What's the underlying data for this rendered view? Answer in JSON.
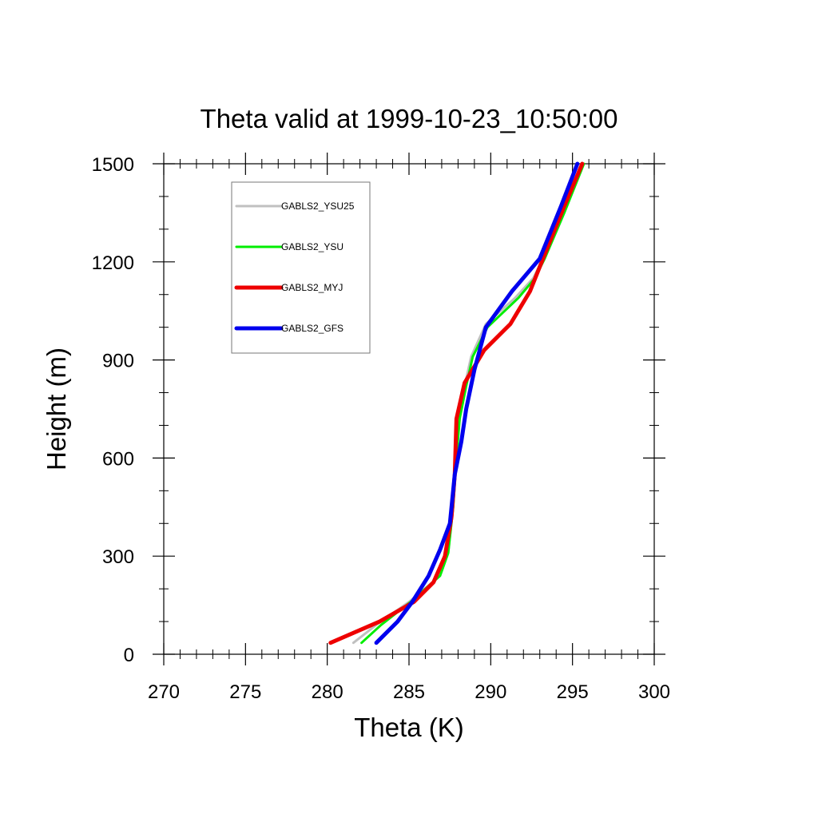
{
  "chart_data": {
    "type": "line",
    "title": "Theta valid at 1999-10-23_10:50:00",
    "xlabel": "Theta (K)",
    "ylabel": "Height (m)",
    "xlim": [
      270,
      300
    ],
    "ylim": [
      0,
      1500
    ],
    "x_ticks": [
      "270",
      "275",
      "280",
      "285",
      "290",
      "295",
      "300"
    ],
    "y_ticks": [
      "0",
      "300",
      "600",
      "900",
      "1200",
      "1500"
    ],
    "legend_position": "top-left",
    "grid": false,
    "series": [
      {
        "name": "GABLS2_YSU25",
        "color": "#c0c0c0",
        "points": [
          [
            281.6,
            35
          ],
          [
            283.0,
            90
          ],
          [
            285.0,
            160
          ],
          [
            286.9,
            240
          ],
          [
            287.4,
            310
          ],
          [
            287.7,
            450
          ],
          [
            287.9,
            600
          ],
          [
            288.1,
            720
          ],
          [
            288.4,
            820
          ],
          [
            288.8,
            910
          ],
          [
            289.7,
            1010
          ],
          [
            291.5,
            1090
          ],
          [
            292.6,
            1150
          ],
          [
            293.2,
            1210
          ],
          [
            294.4,
            1350
          ],
          [
            295.6,
            1500
          ]
        ]
      },
      {
        "name": "GABLS2_YSU",
        "color": "#00ee00",
        "points": [
          [
            282.1,
            35
          ],
          [
            283.3,
            90
          ],
          [
            285.1,
            160
          ],
          [
            286.9,
            240
          ],
          [
            287.4,
            310
          ],
          [
            287.7,
            450
          ],
          [
            287.9,
            600
          ],
          [
            288.1,
            720
          ],
          [
            288.5,
            820
          ],
          [
            288.9,
            910
          ],
          [
            289.8,
            1000
          ],
          [
            291.7,
            1090
          ],
          [
            292.7,
            1150
          ],
          [
            293.3,
            1210
          ],
          [
            294.5,
            1350
          ],
          [
            295.7,
            1500
          ]
        ]
      },
      {
        "name": "GABLS2_MYJ",
        "color": "#ee0000",
        "points": [
          [
            280.2,
            35
          ],
          [
            283.2,
            100
          ],
          [
            285.3,
            160
          ],
          [
            286.5,
            220
          ],
          [
            287.2,
            300
          ],
          [
            287.6,
            420
          ],
          [
            287.8,
            550
          ],
          [
            287.9,
            720
          ],
          [
            288.4,
            830
          ],
          [
            289.6,
            930
          ],
          [
            291.2,
            1010
          ],
          [
            292.4,
            1110
          ],
          [
            293.2,
            1210
          ],
          [
            294.5,
            1370
          ],
          [
            295.6,
            1500
          ]
        ]
      },
      {
        "name": "GABLS2_GFS",
        "color": "#0000ee",
        "points": [
          [
            283.0,
            35
          ],
          [
            284.3,
            100
          ],
          [
            285.2,
            160
          ],
          [
            286.2,
            240
          ],
          [
            286.9,
            320
          ],
          [
            287.5,
            400
          ],
          [
            287.8,
            550
          ],
          [
            288.2,
            650
          ],
          [
            288.5,
            750
          ],
          [
            289.0,
            870
          ],
          [
            289.7,
            1000
          ],
          [
            291.3,
            1110
          ],
          [
            293.0,
            1210
          ],
          [
            294.3,
            1370
          ],
          [
            295.3,
            1500
          ]
        ]
      }
    ]
  }
}
